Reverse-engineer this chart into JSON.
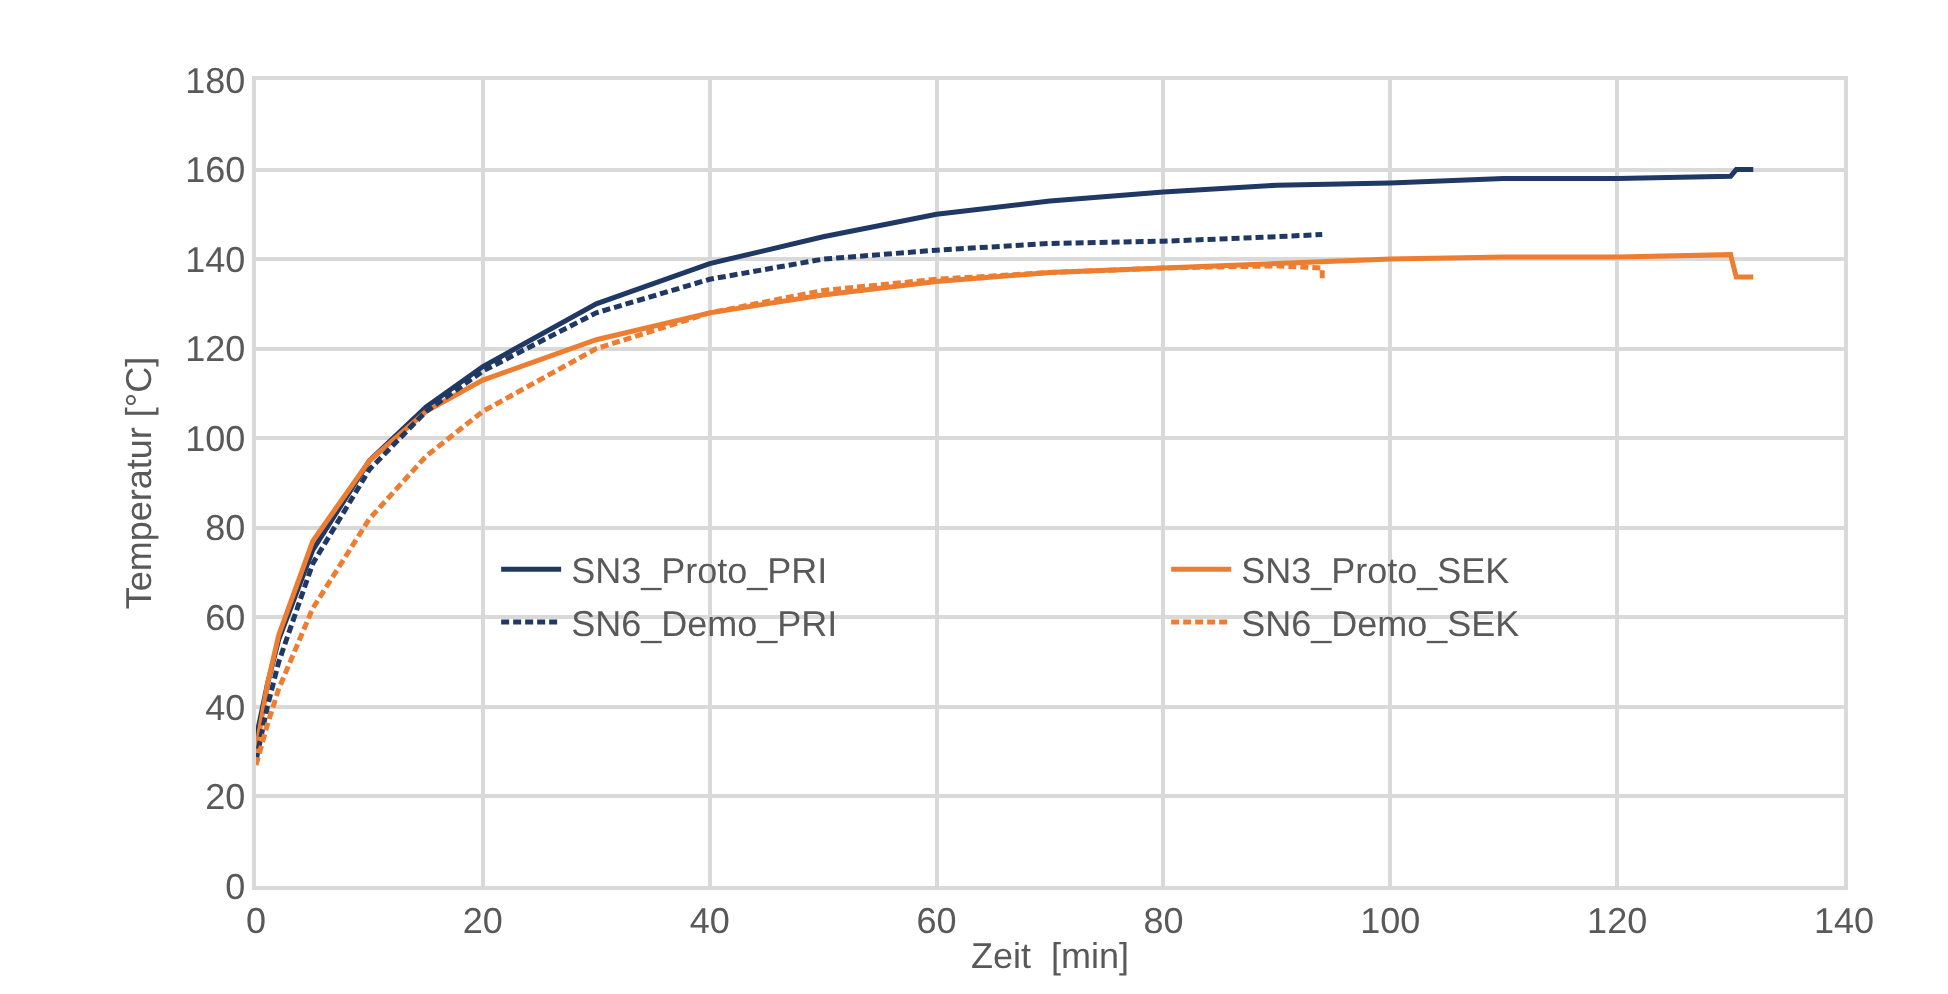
{
  "chart_data": {
    "type": "line",
    "xlabel": "Zeit  [min]",
    "ylabel": "Temperatur [°C]",
    "xlim": [
      0,
      140
    ],
    "xticks": [
      0,
      20,
      40,
      60,
      80,
      100,
      120,
      140
    ],
    "ylim": [
      0,
      180
    ],
    "yticks": [
      0,
      20,
      40,
      60,
      80,
      100,
      120,
      140,
      160,
      180
    ],
    "grid": true,
    "legend": "center",
    "marker": "none",
    "series": [
      {
        "name": "SN3_Proto_PRI",
        "color": "#203864",
        "line_style": "solid",
        "x": [
          0,
          1,
          2,
          5,
          10,
          15,
          20,
          30,
          40,
          50,
          60,
          70,
          80,
          90,
          100,
          110,
          120,
          130,
          130.5,
          132
        ],
        "values": [
          33,
          45,
          55,
          75,
          95,
          107,
          116,
          130,
          139,
          145,
          150,
          153,
          155,
          156.5,
          157,
          158,
          158,
          158.5,
          160,
          160
        ]
      },
      {
        "name": "SN3_Proto_SEK",
        "color": "#ed7d31",
        "line_style": "solid",
        "x": [
          0,
          1,
          2,
          5,
          10,
          15,
          20,
          30,
          40,
          50,
          60,
          70,
          80,
          90,
          100,
          110,
          120,
          130,
          130.5,
          132
        ],
        "values": [
          30,
          45,
          56,
          77,
          95,
          106,
          113,
          122,
          128,
          132,
          135,
          137,
          138,
          139,
          140,
          140.5,
          140.5,
          141,
          136,
          136
        ]
      },
      {
        "name": "SN6_Demo_PRI",
        "color": "#203864",
        "line_style": "dashed",
        "x": [
          0,
          1,
          2,
          5,
          10,
          15,
          20,
          30,
          40,
          50,
          60,
          70,
          80,
          90,
          94
        ],
        "values": [
          28,
          40,
          50,
          72,
          93,
          106,
          115,
          128,
          135.5,
          140,
          142,
          143.5,
          144,
          145,
          145.5
        ]
      },
      {
        "name": "SN6_Demo_SEK",
        "color": "#ed7d31",
        "line_style": "dashed",
        "x": [
          0,
          1,
          2,
          5,
          10,
          15,
          20,
          30,
          40,
          50,
          60,
          70,
          80,
          90,
          94,
          94
        ],
        "values": [
          27,
          36,
          44,
          62,
          82,
          96,
          106,
          120,
          128,
          133,
          135.5,
          137,
          138,
          138.5,
          138,
          135
        ]
      }
    ]
  }
}
